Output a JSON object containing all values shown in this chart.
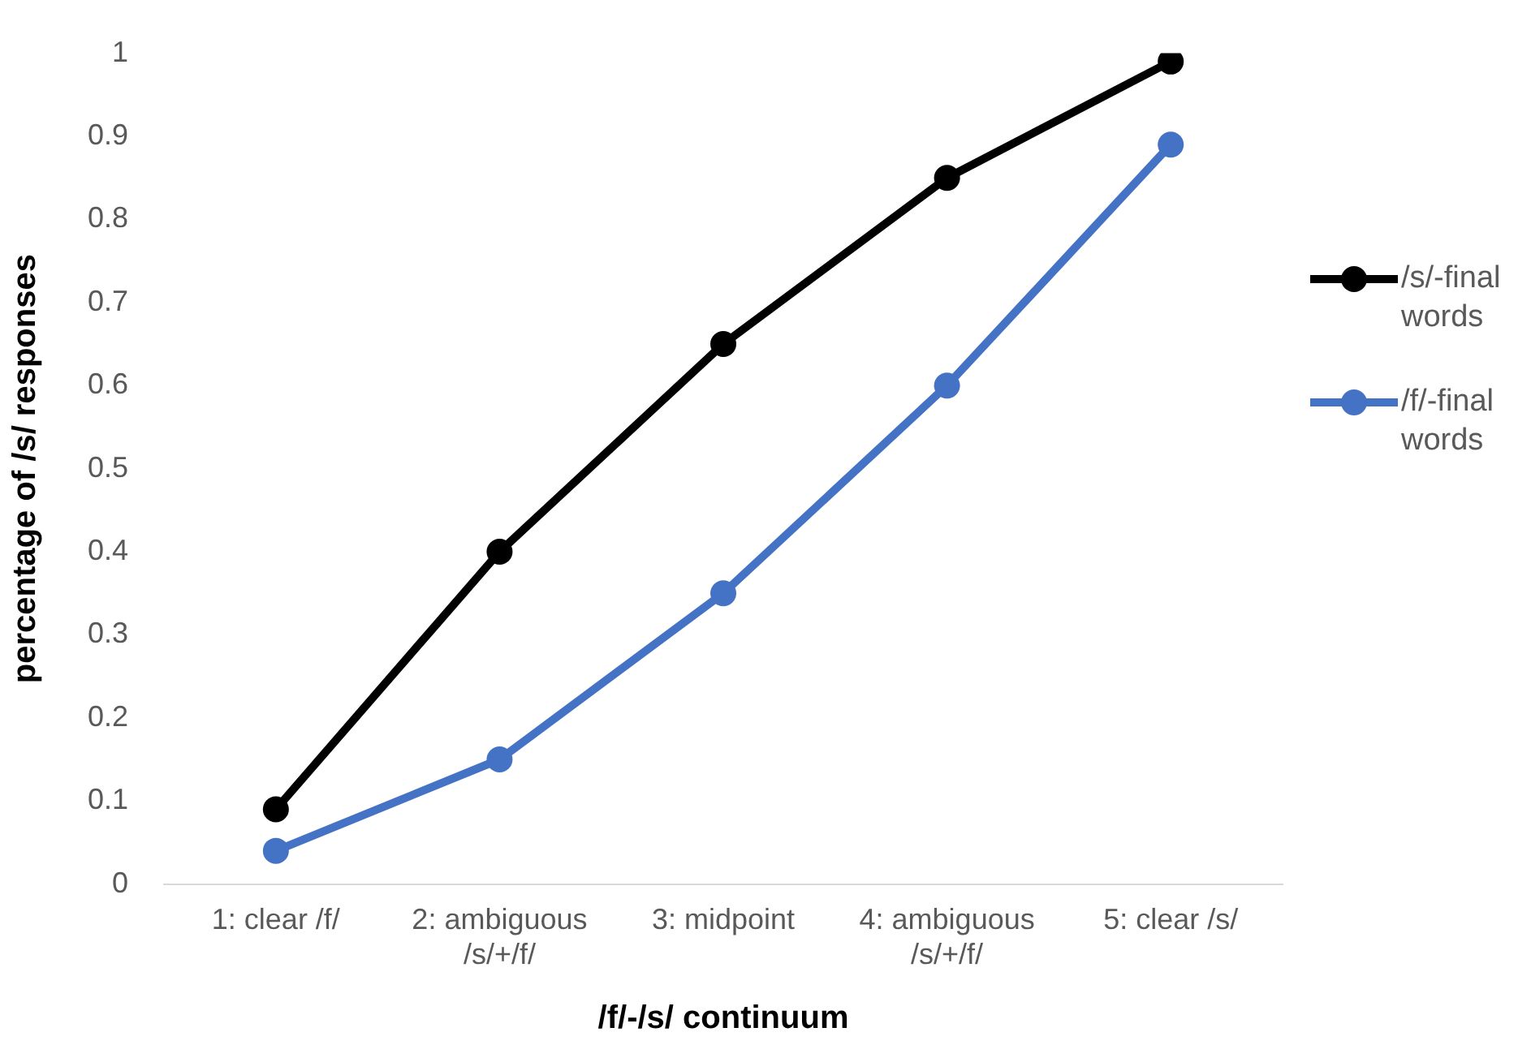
{
  "chart_data": {
    "type": "line",
    "xlabel": "/f/-/s/ continuum",
    "ylabel": "percentage of /s/ responses",
    "categories": [
      "1: clear /f/",
      "2: ambiguous /s/+/f/",
      "3: midpoint",
      "4: ambiguous /s/+/f/",
      "5: clear /s/"
    ],
    "series": [
      {
        "name": "/s/-final words",
        "color": "#000000",
        "values": [
          0.09,
          0.4,
          0.65,
          0.85,
          0.99
        ]
      },
      {
        "name": "/f/-final words",
        "color": "#4472c4",
        "values": [
          0.04,
          0.15,
          0.35,
          0.6,
          0.89
        ]
      }
    ],
    "ylim": [
      0,
      1
    ],
    "yticks": [
      0,
      0.1,
      0.2,
      0.3,
      0.4,
      0.5,
      0.6,
      0.7,
      0.8,
      0.9,
      1
    ],
    "grid": false,
    "legend": "right",
    "marker": "circle",
    "line_style": "solid"
  }
}
